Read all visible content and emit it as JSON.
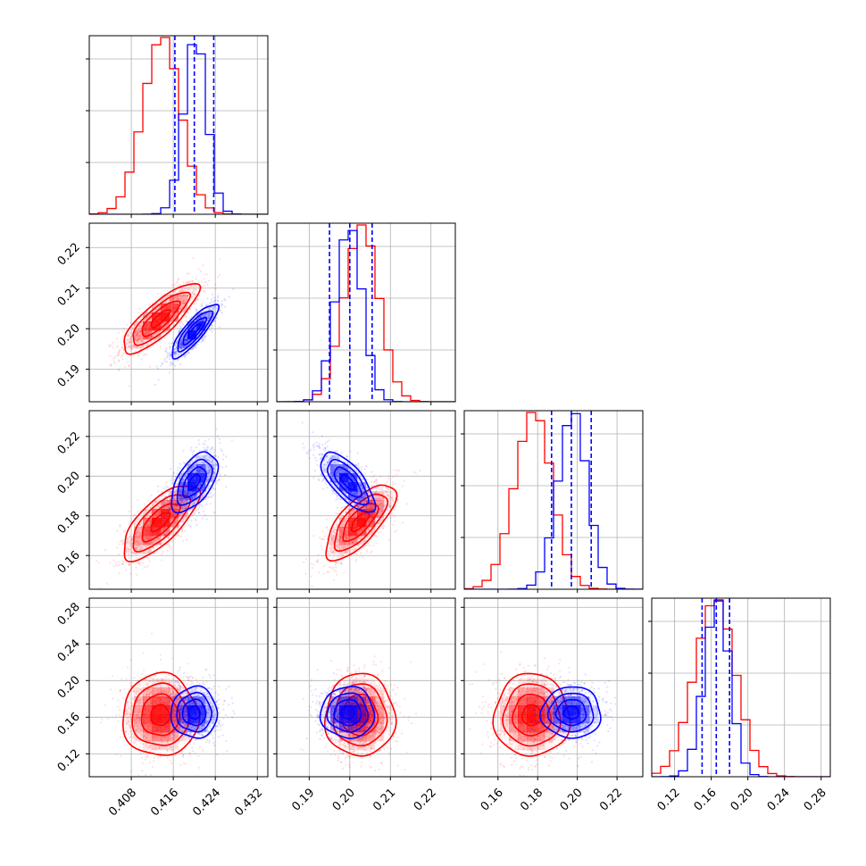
{
  "chart_data": {
    "type": "corner",
    "colors": {
      "series_a": "#ff0000",
      "series_b": "#0000ff",
      "grid": "#b0b0b0"
    },
    "grid": true,
    "params": [
      {
        "range": [
          0.4,
          0.434
        ],
        "ticks": [
          "0.408",
          "0.416",
          "0.424",
          "0.432"
        ],
        "tick_values": [
          0.408,
          0.416,
          0.424,
          0.432
        ]
      },
      {
        "range": [
          0.182,
          0.226
        ],
        "ticks": [
          "0.19",
          "0.20",
          "0.21",
          "0.22"
        ],
        "tick_values": [
          0.19,
          0.2,
          0.21,
          0.22
        ]
      },
      {
        "range": [
          0.143,
          0.233
        ],
        "ticks": [
          "0.16",
          "0.18",
          "0.20",
          "0.22"
        ],
        "tick_values": [
          0.16,
          0.18,
          0.2,
          0.22
        ]
      },
      {
        "range": [
          0.095,
          0.29
        ],
        "ticks": [
          "0.12",
          "0.16",
          "0.20",
          "0.24",
          "0.28"
        ],
        "tick_values": [
          0.12,
          0.16,
          0.2,
          0.24,
          0.28
        ]
      }
    ],
    "series": [
      {
        "color": "#ff0000",
        "mean": [
          0.4135,
          0.2025,
          0.177,
          0.162
        ],
        "sd": [
          0.0036,
          0.0043,
          0.0095,
          0.0225
        ],
        "corr": [
          [
            0,
            0.82,
            0.72,
            0.0
          ],
          [
            0.82,
            0,
            0.72,
            0.0
          ],
          [
            0.72,
            0.72,
            0,
            0.0
          ],
          [
            0.0,
            0.0,
            0.0,
            0
          ]
        ]
      },
      {
        "color": "#0000ff",
        "mean": [
          0.42,
          0.1995,
          0.197,
          0.165
        ],
        "sd": [
          0.0022,
          0.0033,
          0.0075,
          0.014
        ],
        "corr": [
          [
            0,
            0.85,
            0.55,
            0.0
          ],
          [
            0.85,
            0,
            -0.7,
            0.0
          ],
          [
            0.55,
            -0.7,
            0,
            0.0
          ],
          [
            0.0,
            0.0,
            0.0,
            0
          ]
        ],
        "quantiles": [
          [
            0.4163,
            0.42,
            0.4237
          ],
          [
            0.195,
            0.2,
            0.2055
          ],
          [
            0.187,
            0.197,
            0.207
          ],
          [
            0.15,
            0.1655,
            0.18
          ]
        ]
      }
    ]
  }
}
